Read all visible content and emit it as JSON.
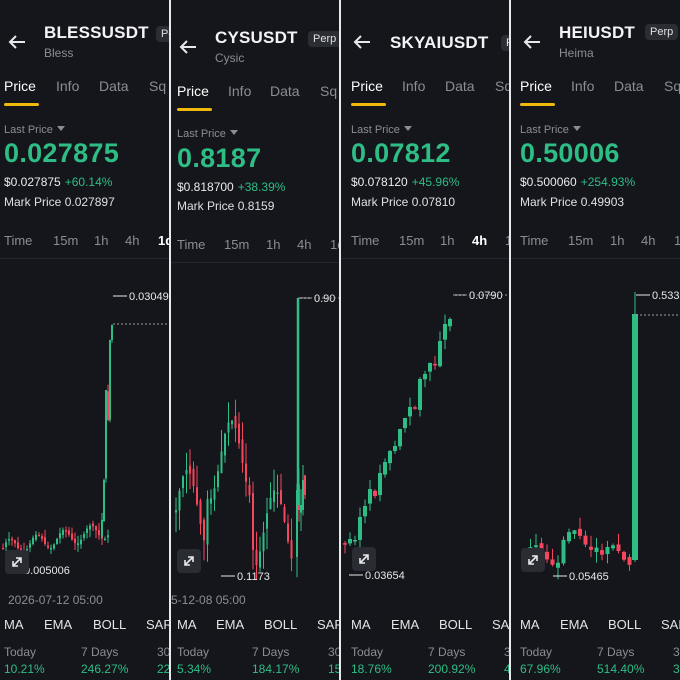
{
  "colors": {
    "up": "#2ebd85",
    "down": "#f6465d",
    "accent": "#f0b90b",
    "bg": "#15161b"
  },
  "panels": [
    {
      "symbol": "BLESSUSDT",
      "badge": "Perp",
      "name": "Bless",
      "tabs": [
        "Price",
        "Info",
        "Data",
        "Sq"
      ],
      "last_price_label": "Last Price",
      "price": "0.027875",
      "sub_price": "$0.027875",
      "change": "+60.14%",
      "mark_label": "Mark Price",
      "mark_price": "0.027897",
      "timeframes": [
        "Time",
        "15m",
        "1h",
        "4h",
        "1d"
      ],
      "active_timeframe": "1d",
      "high_label": "0.03049",
      "low_label": "0.005006",
      "date_label": "2026-07-12 05:00",
      "indicators": [
        "MA",
        "EMA",
        "BOLL",
        "SAR"
      ],
      "perf_labels": [
        "Today",
        "7 Days",
        "30"
      ],
      "perf_values": [
        "10.21%",
        "246.27%",
        "22"
      ]
    },
    {
      "symbol": "CYSUSDT",
      "badge": "Perp",
      "name": "Cysic",
      "tabs": [
        "Price",
        "Info",
        "Data",
        "Sq"
      ],
      "last_price_label": "Last Price",
      "price": "0.8187",
      "sub_price": "$0.818700",
      "change": "+38.39%",
      "mark_label": "Mark Price",
      "mark_price": "0.8159",
      "timeframes": [
        "Time",
        "15m",
        "1h",
        "4h",
        "1d"
      ],
      "active_timeframe": "",
      "high_label": "0.90",
      "low_label": "0.1173",
      "date_label": "5-12-08 05:00",
      "indicators": [
        "MA",
        "EMA",
        "BOLL",
        "SAR"
      ],
      "perf_labels": [
        "Today",
        "7 Days",
        "30"
      ],
      "perf_values": [
        "5.34%",
        "184.17%",
        "15"
      ]
    },
    {
      "symbol": "SKYAIUSDT",
      "badge": "P",
      "name": "",
      "tabs": [
        "Price",
        "Info",
        "Data",
        "Sq"
      ],
      "last_price_label": "Last Price",
      "price": "0.07812",
      "sub_price": "$0.078120",
      "change": "+45.96%",
      "mark_label": "Mark Price",
      "mark_price": "0.07810",
      "timeframes": [
        "Time",
        "15m",
        "1h",
        "4h",
        "1"
      ],
      "active_timeframe": "4h",
      "high_label": "0.0790",
      "low_label": "0.03654",
      "date_label": "",
      "indicators": [
        "MA",
        "EMA",
        "BOLL",
        "SAR"
      ],
      "perf_labels": [
        "Today",
        "7 Days",
        "3"
      ],
      "perf_values": [
        "18.76%",
        "200.92%",
        "4"
      ]
    },
    {
      "symbol": "HEIUSDT",
      "badge": "Perp",
      "name": "Heima",
      "tabs": [
        "Price",
        "Info",
        "Data",
        "Sq"
      ],
      "last_price_label": "Last Price",
      "price": "0.50006",
      "sub_price": "$0.500060",
      "change": "+254.93%",
      "mark_label": "Mark Price",
      "mark_price": "0.49903",
      "timeframes": [
        "Time",
        "15m",
        "1h",
        "4h",
        "1"
      ],
      "active_timeframe": "",
      "high_label": "0.533",
      "low_label": "0.05465",
      "date_label": "",
      "indicators": [
        "MA",
        "EMA",
        "BOLL",
        "SAR"
      ],
      "perf_labels": [
        "Today",
        "7 Days",
        "3"
      ],
      "perf_values": [
        "67.96%",
        "514.40%",
        "3"
      ]
    }
  ]
}
